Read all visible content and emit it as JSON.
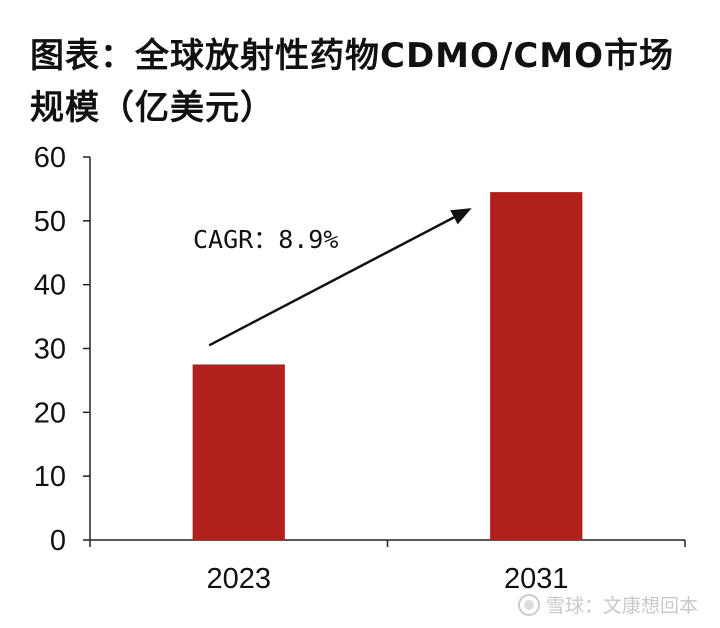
{
  "chart_data": {
    "type": "bar",
    "title": "图表：全球放射性药物CDMO/CMO市场规模（亿美元）",
    "categories": [
      "2023",
      "2031"
    ],
    "values": [
      27.5,
      54.5
    ],
    "ylim": [
      0,
      60
    ],
    "yticks": [
      0,
      10,
      20,
      30,
      40,
      50,
      60
    ],
    "xlabel": "",
    "ylabel": "",
    "grid": false,
    "legend": "none",
    "bar_color": "#b0201c",
    "annotation": {
      "text": "CAGR：8.9%",
      "arrow_from": {
        "category": "2023",
        "value": 30.5
      },
      "arrow_to": {
        "category": "2031",
        "value": 52
      }
    }
  },
  "watermark": {
    "text": "雪球：文康想回本",
    "icon": "snowball-logo-icon"
  }
}
